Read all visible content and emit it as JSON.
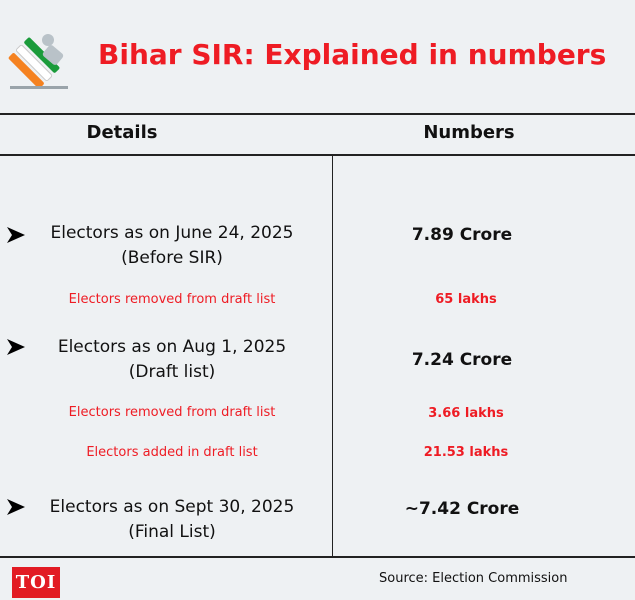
{
  "header": {
    "title": "Bihar SIR: Explained in numbers"
  },
  "table": {
    "col_details": "Details",
    "col_numbers": "Numbers",
    "rows": [
      {
        "label_line1": "Electors as on June 24, 2025",
        "label_line2": "(Before SIR)",
        "value": "7.89 Crore"
      },
      {
        "label": "Electors removed from draft list",
        "value": "65 lakhs"
      },
      {
        "label_line1": "Electors as on Aug 1, 2025",
        "label_line2": "(Draft list)",
        "value": "7.24 Crore"
      },
      {
        "label": "Electors removed from draft list",
        "value": "3.66 lakhs"
      },
      {
        "label": "Electors added in draft list",
        "value": "21.53 lakhs"
      },
      {
        "label_line1": "Electors as on Sept 30, 2025",
        "label_line2": "(Final List)",
        "value": "~7.42 Crore"
      }
    ]
  },
  "footer": {
    "brand": "TOI",
    "source": "Source: Election Commission"
  },
  "colors": {
    "accent_red": "#ee1c24",
    "background": "#eef1f3",
    "text": "#111111"
  },
  "icons": [
    "election-commission-logo",
    "arrow-right-icon"
  ]
}
